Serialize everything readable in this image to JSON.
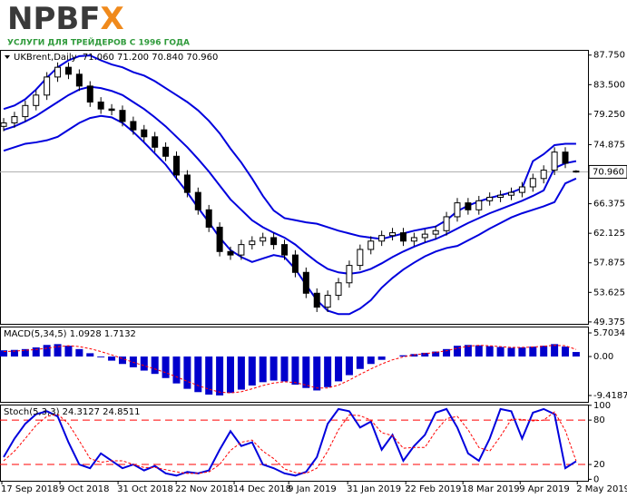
{
  "logo": {
    "main": "NPBF",
    "accent": "X",
    "tagline": "УСЛУГИ ДЛЯ ТРЕЙДЕРОВ С 1996 ГОДА"
  },
  "chart_data": [
    {
      "type": "candlestick",
      "title": "UKBrent,Daily  71.060 71.200 70.840 70.960",
      "xlim": [
        -0.34,
        54.1
      ],
      "ylim": [
        49.1,
        88.5
      ],
      "yticks": [
        {
          "value": 87.75,
          "label": "87.750"
        },
        {
          "value": 83.5,
          "label": "83.500"
        },
        {
          "value": 79.25,
          "label": "79.250"
        },
        74.875,
        66.375,
        {
          "value": 62.125,
          "label": "62.125"
        },
        57.875,
        53.625,
        49.375
      ],
      "price_line": {
        "value": 70.96,
        "label": "70.960"
      },
      "up_color": "#ffffff",
      "down_color": "#000000",
      "open": [
        77.5,
        78.0,
        78.9,
        80.5,
        82.0,
        84.6,
        86.0,
        85.0,
        83.3,
        81.0,
        80.0,
        79.8,
        78.2,
        77.0,
        76.0,
        74.5,
        73.2,
        70.5,
        68.0,
        65.5,
        63.0,
        59.5,
        59.0,
        60.5,
        61.0,
        61.5,
        60.5,
        59.0,
        56.5,
        53.5,
        51.5,
        53.2,
        55.0,
        57.5,
        59.8,
        61.0,
        61.8,
        62.2,
        61.0,
        61.5,
        62.0,
        62.5,
        64.5,
        66.5,
        65.5,
        66.8,
        67.3,
        67.6,
        68.0,
        68.8,
        70.0,
        71.2,
        73.8,
        71.06
      ],
      "high": [
        78.7,
        79.6,
        81.2,
        82.7,
        85.3,
        86.7,
        86.7,
        85.7,
        84.0,
        81.7,
        80.7,
        80.5,
        78.9,
        77.7,
        76.7,
        75.2,
        73.9,
        71.2,
        68.7,
        66.2,
        63.7,
        60.2,
        61.2,
        61.7,
        62.2,
        62.2,
        61.2,
        59.7,
        57.2,
        54.2,
        53.9,
        55.7,
        58.2,
        60.5,
        61.7,
        62.5,
        62.9,
        62.9,
        62.2,
        62.7,
        63.2,
        65.2,
        67.2,
        67.2,
        67.5,
        68.0,
        68.3,
        68.7,
        69.5,
        70.7,
        71.9,
        74.5,
        74.5,
        71.2
      ],
      "low": [
        76.8,
        77.3,
        78.2,
        79.8,
        81.3,
        83.9,
        84.3,
        82.6,
        80.3,
        79.3,
        79.1,
        77.5,
        76.3,
        75.3,
        73.8,
        72.5,
        69.8,
        67.3,
        64.8,
        62.3,
        58.8,
        58.3,
        58.3,
        59.8,
        60.3,
        59.8,
        58.3,
        55.8,
        52.8,
        50.8,
        50.8,
        52.5,
        54.3,
        56.8,
        59.1,
        60.3,
        61.1,
        60.3,
        60.3,
        60.8,
        61.3,
        61.8,
        63.8,
        64.8,
        64.8,
        66.1,
        66.6,
        66.9,
        67.3,
        68.1,
        69.3,
        70.5,
        71.5,
        70.84
      ],
      "close": [
        78.0,
        78.9,
        80.5,
        82.0,
        84.6,
        86.0,
        85.0,
        83.3,
        81.0,
        80.0,
        79.8,
        78.2,
        77.0,
        76.0,
        74.5,
        73.2,
        70.5,
        68.0,
        65.5,
        63.0,
        59.5,
        59.0,
        60.5,
        61.0,
        61.5,
        60.5,
        59.0,
        56.5,
        53.5,
        51.5,
        53.2,
        55.0,
        57.5,
        59.8,
        61.0,
        61.8,
        62.2,
        61.0,
        61.5,
        62.0,
        62.5,
        64.5,
        66.5,
        65.5,
        66.8,
        67.3,
        67.6,
        68.0,
        68.8,
        70.0,
        71.2,
        73.8,
        72.2,
        70.96
      ],
      "bands": [
        {
          "color": "#0000dd",
          "values": [
            80,
            80.5,
            81.4,
            82.8,
            84.5,
            86,
            87,
            87.6,
            87.7,
            87,
            86.4,
            86,
            85.3,
            84.8,
            84,
            83,
            82,
            81,
            79.8,
            78.3,
            76.5,
            74.3,
            72.3,
            70,
            67.5,
            65.4,
            64.3,
            64,
            63.7,
            63.5,
            63,
            62.5,
            62.1,
            61.7,
            61.5,
            61.3,
            61.7,
            62.1,
            62.5,
            62.8,
            63.1,
            64,
            65.3,
            66.1,
            66.7,
            67.2,
            67.6,
            68,
            68.6,
            72.5,
            73.5,
            74.8,
            75,
            75
          ]
        },
        {
          "color": "#0000dd",
          "values": [
            77,
            77.5,
            78.2,
            79,
            80,
            81,
            82,
            82.8,
            83.2,
            83,
            82.6,
            82,
            81,
            80,
            78.8,
            77.5,
            76,
            74.5,
            72.8,
            71,
            69,
            67,
            65.5,
            64,
            63,
            62.2,
            61.5,
            60.5,
            59.2,
            58,
            57,
            56.5,
            56.3,
            56.5,
            57,
            57.8,
            58.7,
            59.5,
            60.2,
            60.8,
            61.3,
            62,
            62.8,
            63.6,
            64.3,
            65,
            65.6,
            66.2,
            66.8,
            67.5,
            68.3,
            71.5,
            72.2,
            72.5
          ]
        },
        {
          "color": "#0000dd",
          "values": [
            74,
            74.5,
            75,
            75.2,
            75.5,
            76,
            77,
            78,
            78.7,
            79,
            78.8,
            78,
            76.7,
            75.2,
            73.6,
            72,
            70,
            68,
            65.8,
            63.7,
            61.5,
            59.7,
            58.7,
            58,
            58.5,
            59,
            58.7,
            57,
            54.7,
            52.5,
            51,
            50.5,
            50.5,
            51.3,
            52.5,
            54.3,
            55.7,
            56.9,
            57.9,
            58.8,
            59.5,
            60,
            60.3,
            61.1,
            61.9,
            62.8,
            63.6,
            64.4,
            65,
            65.5,
            66,
            66.6,
            69.3,
            70
          ]
        }
      ]
    },
    {
      "type": "macd",
      "title": "MACD(5,34,5) 1.0928 1.7132",
      "xlim": [
        -0.34,
        54.1
      ],
      "ylim": [
        -10.95,
        7.24
      ],
      "yticks": [
        5.7034,
        {
          "value": 0,
          "label": "0.00"
        },
        -9.4187
      ],
      "histogram": {
        "color": "#0000cc",
        "values": [
          1.5,
          1.6,
          1.8,
          2.2,
          2.8,
          3.0,
          2.6,
          1.8,
          0.8,
          -0.2,
          -1.0,
          -1.8,
          -2.6,
          -3.4,
          -4.2,
          -5.2,
          -6.5,
          -7.8,
          -8.6,
          -9.2,
          -9.4,
          -8.8,
          -8.0,
          -7.0,
          -6.2,
          -5.8,
          -6.0,
          -6.8,
          -7.6,
          -8.2,
          -7.4,
          -6.0,
          -4.5,
          -3.0,
          -1.8,
          -0.8,
          0.0,
          0.3,
          0.6,
          0.9,
          1.2,
          1.8,
          2.6,
          2.8,
          2.7,
          2.5,
          2.3,
          2.1,
          2.2,
          2.4,
          2.6,
          3.0,
          2.4,
          1.0928
        ]
      },
      "signal": {
        "color": "#ff0000",
        "values": [
          1.2,
          1.3,
          1.5,
          1.7,
          2.0,
          2.4,
          2.6,
          2.4,
          1.9,
          1.2,
          0.4,
          -0.5,
          -1.4,
          -2.2,
          -3.0,
          -3.9,
          -4.9,
          -6.0,
          -7.0,
          -7.9,
          -8.6,
          -8.8,
          -8.5,
          -7.8,
          -7.0,
          -6.4,
          -6.1,
          -6.3,
          -6.9,
          -7.6,
          -7.6,
          -6.9,
          -5.7,
          -4.3,
          -3.0,
          -1.8,
          -0.8,
          -0.1,
          0.4,
          0.7,
          1.0,
          1.4,
          2.0,
          2.5,
          2.7,
          2.6,
          2.4,
          2.2,
          2.2,
          2.3,
          2.5,
          2.7,
          2.6,
          1.7132
        ]
      }
    },
    {
      "type": "stochastic",
      "title": "Stoch(5,3,3) 24.3127 24.8511",
      "xlim": [
        -0.34,
        54.1
      ],
      "ylim": [
        -2,
        101
      ],
      "yticks": [
        100,
        80,
        20,
        0
      ],
      "levels": [
        80,
        20
      ],
      "level_color": "#ff0000",
      "xticks": [
        {
          "value": -0.17,
          "label": "17 Sep 2018"
        },
        {
          "value": 5.21,
          "label": "9 Oct 2018"
        },
        {
          "value": 10.59,
          "label": "31 Oct 2018"
        },
        {
          "value": 15.97,
          "label": "22 Nov 2018"
        },
        {
          "value": 21.34,
          "label": "14 Dec 2018"
        },
        {
          "value": 26.39,
          "label": "9 Jan 2019"
        },
        {
          "value": 31.85,
          "label": "31 Jan 2019"
        },
        {
          "value": 37.23,
          "label": "22 Feb 2019"
        },
        {
          "value": 42.52,
          "label": "18 Mar 2019"
        },
        {
          "value": 47.82,
          "label": "9 Apr 2019"
        },
        {
          "value": 53.11,
          "label": "2 May 2019"
        }
      ],
      "k": {
        "color": "#0000dd",
        "values": [
          30,
          55,
          75,
          88,
          92,
          85,
          50,
          20,
          15,
          35,
          25,
          15,
          20,
          12,
          18,
          8,
          5,
          10,
          8,
          12,
          40,
          65,
          45,
          50,
          20,
          15,
          8,
          5,
          10,
          30,
          75,
          95,
          92,
          70,
          78,
          40,
          60,
          25,
          45,
          60,
          90,
          95,
          70,
          35,
          25,
          55,
          95,
          92,
          55,
          90,
          95,
          88,
          15,
          24.3127
        ]
      },
      "d": {
        "color": "#ff0000",
        "values": [
          25,
          38,
          55,
          73,
          85,
          88,
          75,
          52,
          28,
          23,
          25,
          25,
          20,
          16,
          16,
          13,
          10,
          8,
          8,
          10,
          20,
          39,
          50,
          53,
          38,
          28,
          14,
          9,
          8,
          15,
          38,
          67,
          87,
          86,
          80,
          63,
          59,
          42,
          43,
          43,
          65,
          82,
          85,
          67,
          43,
          38,
          58,
          81,
          81,
          79,
          80,
          91,
          66,
          24.8511
        ]
      }
    }
  ]
}
